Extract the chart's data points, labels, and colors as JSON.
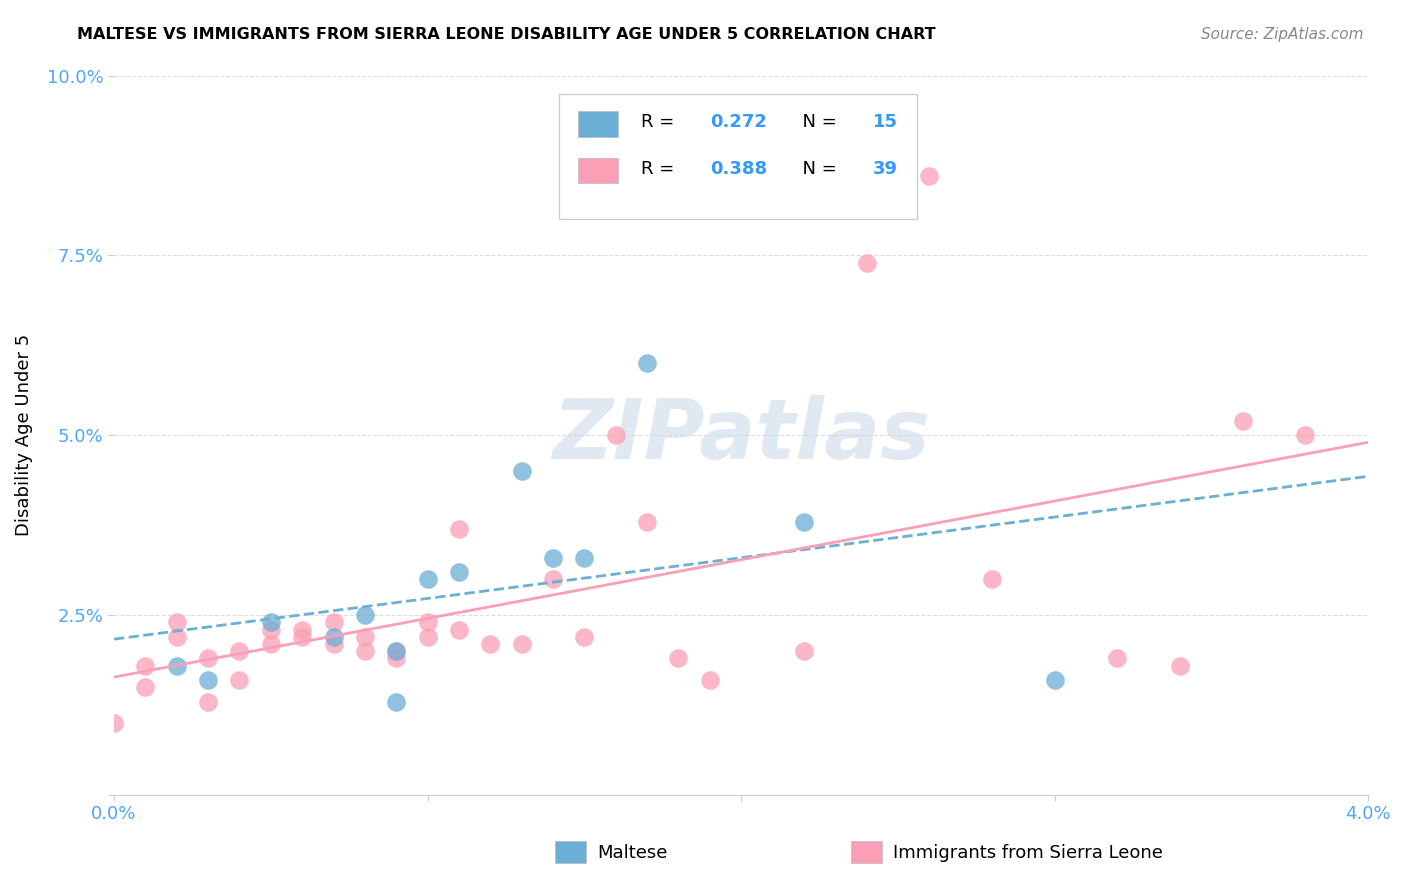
{
  "title": "MALTESE VS IMMIGRANTS FROM SIERRA LEONE DISABILITY AGE UNDER 5 CORRELATION CHART",
  "source": "Source: ZipAtlas.com",
  "ylabel": "Disability Age Under 5",
  "xlim": [
    0.0,
    0.04
  ],
  "ylim": [
    0.0,
    0.1
  ],
  "legend_label1": "Maltese",
  "legend_label2": "Immigrants from Sierra Leone",
  "r1": 0.272,
  "n1": 15,
  "r2": 0.388,
  "n2": 39,
  "color1": "#6baed6",
  "color2": "#fa9fb5",
  "scatter1_x": [
    0.002,
    0.003,
    0.005,
    0.007,
    0.008,
    0.009,
    0.009,
    0.01,
    0.011,
    0.013,
    0.014,
    0.015,
    0.017,
    0.022,
    0.03
  ],
  "scatter1_y": [
    0.018,
    0.016,
    0.024,
    0.022,
    0.025,
    0.013,
    0.02,
    0.03,
    0.031,
    0.045,
    0.033,
    0.033,
    0.06,
    0.038,
    0.016
  ],
  "scatter2_x": [
    0.0,
    0.001,
    0.001,
    0.002,
    0.002,
    0.003,
    0.003,
    0.004,
    0.004,
    0.005,
    0.005,
    0.006,
    0.006,
    0.007,
    0.007,
    0.008,
    0.008,
    0.009,
    0.009,
    0.01,
    0.01,
    0.011,
    0.011,
    0.012,
    0.013,
    0.014,
    0.015,
    0.016,
    0.017,
    0.018,
    0.019,
    0.022,
    0.024,
    0.026,
    0.028,
    0.032,
    0.034,
    0.036,
    0.038
  ],
  "scatter2_y": [
    0.01,
    0.018,
    0.015,
    0.024,
    0.022,
    0.013,
    0.019,
    0.016,
    0.02,
    0.021,
    0.023,
    0.022,
    0.023,
    0.021,
    0.024,
    0.022,
    0.02,
    0.019,
    0.02,
    0.022,
    0.024,
    0.023,
    0.037,
    0.021,
    0.021,
    0.03,
    0.022,
    0.05,
    0.038,
    0.019,
    0.016,
    0.02,
    0.074,
    0.086,
    0.03,
    0.019,
    0.018,
    0.052,
    0.05
  ],
  "watermark": "ZIPatlas",
  "background_color": "#ffffff",
  "grid_color": "#dddddd"
}
